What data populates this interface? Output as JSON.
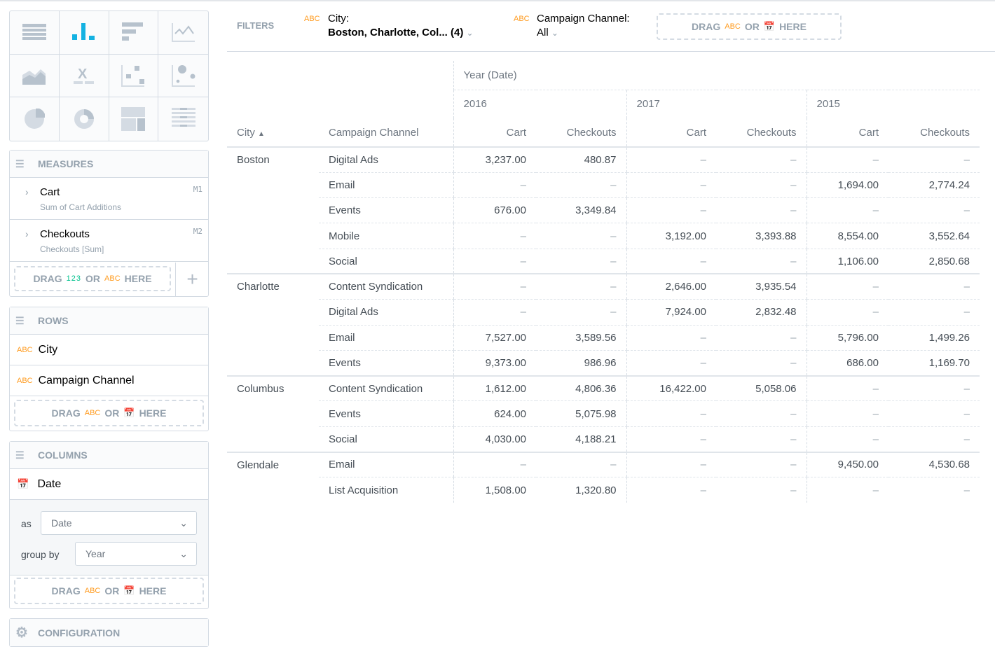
{
  "chart_types": [
    "table",
    "column",
    "bar",
    "line",
    "area",
    "headline",
    "scatter",
    "bubble",
    "pie",
    "donut",
    "treemap",
    "heatmap"
  ],
  "colors": {
    "accent": "#14b2e2",
    "abc": "#ff9b1f",
    "num": "#00c18d"
  },
  "measures": {
    "title": "MEASURES",
    "items": [
      {
        "name": "Cart",
        "sub": "Sum of Cart Additions",
        "id": "M1"
      },
      {
        "name": "Checkouts",
        "sub": "Checkouts [Sum]",
        "id": "M2"
      }
    ],
    "drag": {
      "drag": "DRAG",
      "num": "123",
      "or": "OR",
      "abc": "ABC",
      "here": "HERE"
    }
  },
  "rows_panel": {
    "title": "ROWS",
    "items": [
      "City",
      "Campaign Channel"
    ]
  },
  "columns_panel": {
    "title": "COLUMNS",
    "item": "Date",
    "as_label": "as",
    "as_value": "Date",
    "group_label": "group by",
    "group_value": "Year"
  },
  "configuration": "CONFIGURATION",
  "filters": {
    "label": "FILTERS",
    "city_label": "City:",
    "city_value": "Boston, Charlotte, Col... (4)",
    "channel_label": "Campaign Channel:",
    "channel_value": "All"
  },
  "table": {
    "col_attr": "Year (Date)",
    "years": [
      "2016",
      "2017",
      "2015"
    ],
    "headers": {
      "city": "City",
      "channel": "Campaign Channel",
      "cart": "Cart",
      "checkouts": "Checkouts"
    },
    "groups": [
      {
        "city": "Boston",
        "rows": [
          {
            "channel": "Digital Ads",
            "values": [
              "3,237.00",
              "480.87",
              "–",
              "–",
              "–",
              "–"
            ]
          },
          {
            "channel": "Email",
            "values": [
              "–",
              "–",
              "–",
              "–",
              "1,694.00",
              "2,774.24"
            ]
          },
          {
            "channel": "Events",
            "values": [
              "676.00",
              "3,349.84",
              "–",
              "–",
              "–",
              "–"
            ]
          },
          {
            "channel": "Mobile",
            "values": [
              "–",
              "–",
              "3,192.00",
              "3,393.88",
              "8,554.00",
              "3,552.64"
            ]
          },
          {
            "channel": "Social",
            "values": [
              "–",
              "–",
              "–",
              "–",
              "1,106.00",
              "2,850.68"
            ]
          }
        ]
      },
      {
        "city": "Charlotte",
        "rows": [
          {
            "channel": "Content Syndication",
            "values": [
              "–",
              "–",
              "2,646.00",
              "3,935.54",
              "–",
              "–"
            ]
          },
          {
            "channel": "Digital Ads",
            "values": [
              "–",
              "–",
              "7,924.00",
              "2,832.48",
              "–",
              "–"
            ]
          },
          {
            "channel": "Email",
            "values": [
              "7,527.00",
              "3,589.56",
              "–",
              "–",
              "5,796.00",
              "1,499.26"
            ]
          },
          {
            "channel": "Events",
            "values": [
              "9,373.00",
              "986.96",
              "–",
              "–",
              "686.00",
              "1,169.70"
            ]
          }
        ]
      },
      {
        "city": "Columbus",
        "rows": [
          {
            "channel": "Content Syndication",
            "values": [
              "1,612.00",
              "4,806.36",
              "16,422.00",
              "5,058.06",
              "–",
              "–"
            ]
          },
          {
            "channel": "Events",
            "values": [
              "624.00",
              "5,075.98",
              "–",
              "–",
              "–",
              "–"
            ]
          },
          {
            "channel": "Social",
            "values": [
              "4,030.00",
              "4,188.21",
              "–",
              "–",
              "–",
              "–"
            ]
          }
        ]
      },
      {
        "city": "Glendale",
        "rows": [
          {
            "channel": "Email",
            "values": [
              "–",
              "–",
              "–",
              "–",
              "9,450.00",
              "4,530.68"
            ]
          },
          {
            "channel": "List Acquisition",
            "values": [
              "1,508.00",
              "1,320.80",
              "–",
              "–",
              "–",
              "–"
            ]
          }
        ]
      }
    ]
  }
}
